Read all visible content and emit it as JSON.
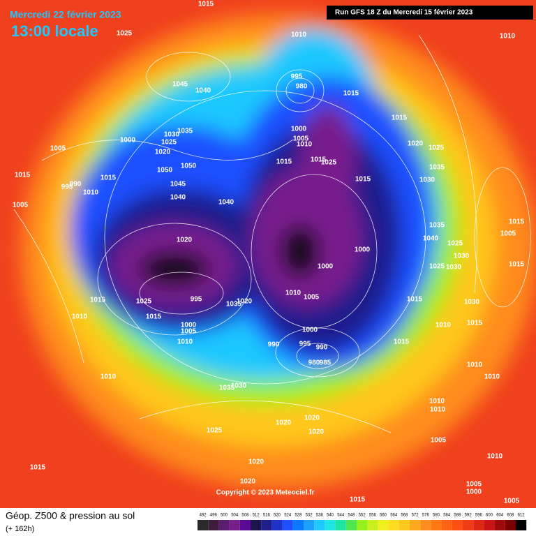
{
  "header": {
    "date": "Mercredi 22 février 2023",
    "time": "13:00 locale",
    "run": "Run GFS 18 Z du Mercredi 15 février 2023"
  },
  "footer": {
    "title": "Géop. Z500 & pression au sol",
    "lead": "(+ 162h)",
    "copyright": "Copyright © 2023 Meteociel.fr"
  },
  "scale": {
    "labels": [
      492,
      496,
      500,
      504,
      508,
      512,
      516,
      520,
      524,
      528,
      532,
      536,
      540,
      544,
      548,
      552,
      556,
      560,
      564,
      568,
      572,
      576,
      580,
      584,
      588,
      592,
      596,
      600,
      604,
      608,
      612
    ],
    "colors": [
      "#2a2a2a",
      "#3c1e3c",
      "#5a1e6e",
      "#781e8c",
      "#5a0a96",
      "#1e1450",
      "#1e1e8c",
      "#1e32c8",
      "#1e50ff",
      "#0a78ff",
      "#1ea0ff",
      "#1ec8ff",
      "#1ee6e6",
      "#1ee6a0",
      "#50e650",
      "#96f01e",
      "#c8f01e",
      "#f0f01e",
      "#ffdc1e",
      "#ffc81e",
      "#ffaa1e",
      "#ff8c1e",
      "#ff7814",
      "#ff6414",
      "#ff5014",
      "#f03c14",
      "#dc2814",
      "#c81414",
      "#a00a0a",
      "#780000",
      "#000000"
    ]
  },
  "isobar_labels": [
    "1015",
    "1025",
    "1010",
    "1010",
    "1045",
    "1040",
    "995",
    "980",
    "1015",
    "1015",
    "1035",
    "1000",
    "1030",
    "1025",
    "1020",
    "1005",
    "1000",
    "1005",
    "1010",
    "1020",
    "1025",
    "1015",
    "1050",
    "1050",
    "1015",
    "1015",
    "1025",
    "1035",
    "1030",
    "1015",
    "995",
    "990",
    "1010",
    "1045",
    "1040",
    "1040",
    "1015",
    "1005",
    "1035",
    "1015",
    "1040",
    "1005",
    "1025",
    "1020",
    "1000",
    "1000",
    "1030",
    "1025",
    "1030",
    "1015",
    "1010",
    "1005",
    "1025",
    "995",
    "1015",
    "1035",
    "1020",
    "1015",
    "1030",
    "1010",
    "1015",
    "1010",
    "1015",
    "1000",
    "1005",
    "1000",
    "990",
    "995",
    "990",
    "1010",
    "1015",
    "980",
    "985",
    "1010",
    "1010",
    "1010",
    "1035",
    "1030",
    "1010",
    "1010",
    "1020",
    "1020",
    "1020",
    "1025",
    "1005",
    "1020",
    "1010",
    "1015",
    "1020",
    "1005",
    "1000",
    "1015",
    "1005"
  ]
}
